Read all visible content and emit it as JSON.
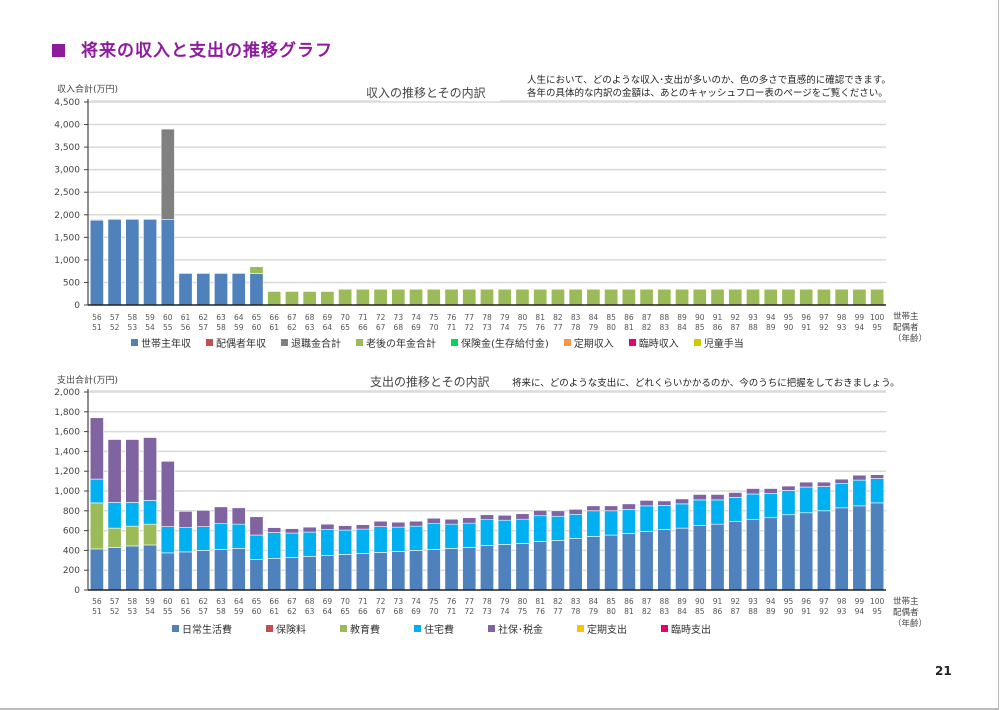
{
  "page": {
    "title": "将来の収入と支出の推移グラフ",
    "page_number": "21"
  },
  "income": {
    "y_axis_label": "収入合計(万円)",
    "chart_title": "収入の推移とその内訳",
    "note_lines": [
      "人生において、どのような収入･支出が多いのか、色の多さで直感的に確認できます。",
      "各年の具体的な内訳の金額は、あとのキャッシュフロー表のページをご覧ください。"
    ],
    "age_row_label_1": "世帯主",
    "age_row_label_2": "配偶者",
    "age_row_label_3": "（年齢）"
  },
  "expense": {
    "y_axis_label": "支出合計(万円)",
    "chart_title": "支出の推移とその内訳",
    "note_lines": [
      "将来に、どのような支出に、どれくらいかかるのか、今のうちに把握をしておきましょう。"
    ],
    "age_row_label_1": "世帯主",
    "age_row_label_2": "配偶者",
    "age_row_label_3": "（年齢）"
  },
  "chart_data": [
    {
      "type": "bar",
      "stacked": true,
      "title": "収入の推移とその内訳",
      "ylabel": "収入合計(万円)",
      "xlabel": "世帯主/配偶者（年齢）",
      "ylim": [
        0,
        4500
      ],
      "yticks": [
        0,
        500,
        1000,
        1500,
        2000,
        2500,
        3000,
        3500,
        4000,
        4500
      ],
      "grid": true,
      "legend_position": "bottom",
      "categories": [
        "56",
        "57",
        "58",
        "59",
        "60",
        "61",
        "62",
        "63",
        "64",
        "65",
        "66",
        "67",
        "68",
        "69",
        "70",
        "71",
        "72",
        "73",
        "74",
        "75",
        "76",
        "77",
        "78",
        "79",
        "80",
        "81",
        "82",
        "83",
        "84",
        "85",
        "86",
        "87",
        "88",
        "89",
        "90",
        "91",
        "92",
        "93",
        "94",
        "95",
        "96",
        "97",
        "98",
        "99",
        "100"
      ],
      "categories_secondary": [
        "51",
        "52",
        "53",
        "54",
        "55",
        "56",
        "57",
        "58",
        "59",
        "60",
        "61",
        "62",
        "63",
        "64",
        "65",
        "66",
        "67",
        "68",
        "69",
        "70",
        "71",
        "72",
        "73",
        "74",
        "75",
        "76",
        "77",
        "78",
        "79",
        "80",
        "81",
        "82",
        "83",
        "84",
        "85",
        "86",
        "87",
        "88",
        "89",
        "90",
        "91",
        "92",
        "93",
        "94",
        "95"
      ],
      "series": [
        {
          "name": "世帯主年収",
          "color": "#4f81bd",
          "values": [
            1880,
            1900,
            1900,
            1900,
            1900,
            700,
            700,
            700,
            700,
            700,
            0,
            0,
            0,
            0,
            0,
            0,
            0,
            0,
            0,
            0,
            0,
            0,
            0,
            0,
            0,
            0,
            0,
            0,
            0,
            0,
            0,
            0,
            0,
            0,
            0,
            0,
            0,
            0,
            0,
            0,
            0,
            0,
            0,
            0,
            0
          ]
        },
        {
          "name": "配偶者年収",
          "color": "#c0504d",
          "values": [
            0,
            0,
            0,
            0,
            0,
            0,
            0,
            0,
            0,
            0,
            0,
            0,
            0,
            0,
            0,
            0,
            0,
            0,
            0,
            0,
            0,
            0,
            0,
            0,
            0,
            0,
            0,
            0,
            0,
            0,
            0,
            0,
            0,
            0,
            0,
            0,
            0,
            0,
            0,
            0,
            0,
            0,
            0,
            0,
            0
          ]
        },
        {
          "name": "退職金合計",
          "color": "#808080",
          "values": [
            0,
            0,
            0,
            0,
            2000,
            0,
            0,
            0,
            0,
            0,
            0,
            0,
            0,
            0,
            0,
            0,
            0,
            0,
            0,
            0,
            0,
            0,
            0,
            0,
            0,
            0,
            0,
            0,
            0,
            0,
            0,
            0,
            0,
            0,
            0,
            0,
            0,
            0,
            0,
            0,
            0,
            0,
            0,
            0,
            0
          ]
        },
        {
          "name": "老後の年金合計",
          "color": "#9bbb59",
          "values": [
            0,
            0,
            0,
            0,
            0,
            0,
            0,
            0,
            0,
            150,
            300,
            300,
            300,
            300,
            350,
            350,
            350,
            350,
            350,
            350,
            350,
            350,
            350,
            350,
            350,
            350,
            350,
            350,
            350,
            350,
            350,
            350,
            350,
            350,
            350,
            350,
            350,
            350,
            350,
            350,
            350,
            350,
            350,
            350,
            350
          ]
        },
        {
          "name": "保険金(生存給付金)",
          "color": "#00d65b",
          "values": [
            0,
            0,
            0,
            0,
            0,
            0,
            0,
            0,
            0,
            0,
            0,
            0,
            0,
            0,
            0,
            0,
            0,
            0,
            0,
            0,
            0,
            0,
            0,
            0,
            0,
            0,
            0,
            0,
            0,
            0,
            0,
            0,
            0,
            0,
            0,
            0,
            0,
            0,
            0,
            0,
            0,
            0,
            0,
            0,
            0
          ]
        },
        {
          "name": "定期収入",
          "color": "#f79646",
          "values": [
            0,
            0,
            0,
            0,
            0,
            0,
            0,
            0,
            0,
            0,
            0,
            0,
            0,
            0,
            0,
            0,
            0,
            0,
            0,
            0,
            0,
            0,
            0,
            0,
            0,
            0,
            0,
            0,
            0,
            0,
            0,
            0,
            0,
            0,
            0,
            0,
            0,
            0,
            0,
            0,
            0,
            0,
            0,
            0,
            0
          ]
        },
        {
          "name": "臨時収入",
          "color": "#e8006f",
          "values": [
            0,
            0,
            0,
            0,
            0,
            0,
            0,
            0,
            0,
            0,
            0,
            0,
            0,
            0,
            0,
            0,
            0,
            0,
            0,
            0,
            0,
            0,
            0,
            0,
            0,
            0,
            0,
            0,
            0,
            0,
            0,
            0,
            0,
            0,
            0,
            0,
            0,
            0,
            0,
            0,
            0,
            0,
            0,
            0,
            0
          ]
        },
        {
          "name": "児童手当",
          "color": "#cccc00",
          "values": [
            20,
            0,
            0,
            0,
            0,
            0,
            0,
            0,
            0,
            0,
            0,
            0,
            0,
            0,
            0,
            0,
            0,
            0,
            0,
            0,
            0,
            0,
            0,
            0,
            0,
            0,
            0,
            0,
            0,
            0,
            0,
            0,
            0,
            0,
            0,
            0,
            0,
            0,
            0,
            0,
            0,
            0,
            0,
            0,
            0
          ]
        }
      ]
    },
    {
      "type": "bar",
      "stacked": true,
      "title": "支出の推移とその内訳",
      "ylabel": "支出合計(万円)",
      "xlabel": "世帯主/配偶者（年齢）",
      "ylim": [
        0,
        2000
      ],
      "yticks": [
        0,
        200,
        400,
        600,
        800,
        1000,
        1200,
        1400,
        1600,
        1800,
        2000
      ],
      "grid": true,
      "legend_position": "bottom",
      "categories": [
        "56",
        "57",
        "58",
        "59",
        "60",
        "61",
        "62",
        "63",
        "64",
        "65",
        "66",
        "67",
        "68",
        "69",
        "70",
        "71",
        "72",
        "73",
        "74",
        "75",
        "76",
        "77",
        "78",
        "79",
        "80",
        "81",
        "82",
        "83",
        "84",
        "85",
        "86",
        "87",
        "88",
        "89",
        "90",
        "91",
        "92",
        "93",
        "94",
        "95",
        "96",
        "97",
        "98",
        "99",
        "100"
      ],
      "categories_secondary": [
        "51",
        "52",
        "53",
        "54",
        "55",
        "56",
        "57",
        "58",
        "59",
        "60",
        "61",
        "62",
        "63",
        "64",
        "65",
        "66",
        "67",
        "68",
        "69",
        "70",
        "71",
        "72",
        "73",
        "74",
        "75",
        "76",
        "77",
        "78",
        "79",
        "80",
        "81",
        "82",
        "83",
        "84",
        "85",
        "86",
        "87",
        "88",
        "89",
        "90",
        "91",
        "92",
        "93",
        "94",
        "95"
      ],
      "series": [
        {
          "name": "日常生活費",
          "color": "#4f81bd",
          "values": [
            415,
            430,
            445,
            455,
            375,
            385,
            400,
            410,
            420,
            310,
            320,
            330,
            340,
            350,
            360,
            370,
            380,
            390,
            400,
            410,
            420,
            430,
            450,
            460,
            470,
            490,
            500,
            520,
            540,
            555,
            570,
            590,
            610,
            625,
            650,
            665,
            690,
            710,
            730,
            760,
            780,
            800,
            830,
            850,
            880
          ]
        },
        {
          "name": "保険料",
          "color": "#c0504d",
          "values": [
            0,
            0,
            0,
            0,
            0,
            0,
            0,
            0,
            0,
            0,
            0,
            0,
            0,
            0,
            0,
            0,
            0,
            0,
            0,
            0,
            0,
            0,
            0,
            0,
            0,
            0,
            0,
            0,
            0,
            0,
            0,
            0,
            0,
            0,
            0,
            0,
            0,
            0,
            0,
            0,
            0,
            0,
            0,
            0,
            0
          ]
        },
        {
          "name": "教育費",
          "color": "#9bbb59",
          "values": [
            465,
            195,
            200,
            210,
            0,
            0,
            0,
            0,
            0,
            0,
            0,
            0,
            0,
            0,
            0,
            0,
            0,
            0,
            0,
            0,
            0,
            0,
            0,
            0,
            0,
            0,
            0,
            0,
            0,
            0,
            0,
            0,
            0,
            0,
            0,
            0,
            0,
            0,
            0,
            0,
            0,
            0,
            0,
            0,
            0
          ]
        },
        {
          "name": "住宅費",
          "color": "#00b0f0",
          "values": [
            240,
            260,
            240,
            240,
            265,
            245,
            240,
            260,
            245,
            245,
            260,
            245,
            245,
            260,
            245,
            245,
            260,
            245,
            245,
            260,
            245,
            245,
            260,
            245,
            245,
            260,
            245,
            245,
            260,
            245,
            245,
            260,
            245,
            245,
            260,
            245,
            245,
            260,
            245,
            245,
            260,
            245,
            245,
            260,
            245
          ]
        },
        {
          "name": "社保･税金",
          "color": "#8064a2",
          "values": [
            620,
            635,
            635,
            635,
            660,
            165,
            165,
            170,
            165,
            185,
            50,
            45,
            50,
            55,
            45,
            45,
            55,
            50,
            50,
            55,
            50,
            55,
            50,
            50,
            55,
            55,
            55,
            50,
            50,
            50,
            55,
            55,
            45,
            50,
            55,
            55,
            50,
            55,
            50,
            45,
            50,
            45,
            45,
            50,
            40
          ]
        },
        {
          "name": "定期支出",
          "color": "#ffc000",
          "values": [
            0,
            0,
            0,
            0,
            0,
            0,
            0,
            0,
            0,
            0,
            0,
            0,
            0,
            0,
            0,
            0,
            0,
            0,
            0,
            0,
            0,
            0,
            0,
            0,
            0,
            0,
            0,
            0,
            0,
            0,
            0,
            0,
            0,
            0,
            0,
            0,
            0,
            0,
            0,
            0,
            0,
            0,
            0,
            0,
            0
          ]
        },
        {
          "name": "臨時支出",
          "color": "#e8006f",
          "values": [
            0,
            0,
            0,
            0,
            0,
            0,
            0,
            0,
            0,
            0,
            0,
            0,
            0,
            0,
            0,
            0,
            0,
            0,
            0,
            0,
            0,
            0,
            0,
            0,
            0,
            0,
            0,
            0,
            0,
            0,
            0,
            0,
            0,
            0,
            0,
            0,
            0,
            0,
            0,
            0,
            0,
            0,
            0,
            0,
            0
          ]
        }
      ]
    }
  ]
}
